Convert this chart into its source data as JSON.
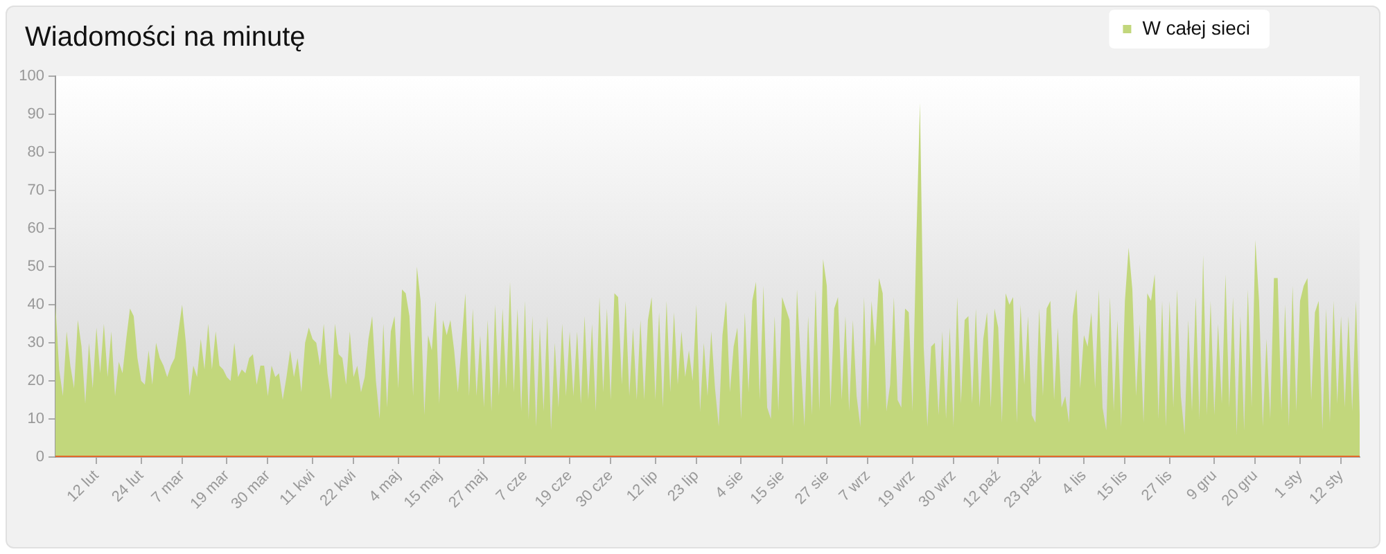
{
  "chart_data": {
    "type": "area",
    "title": "Wiadomości na minutę",
    "legend": "top right",
    "categories": [
      null,
      null,
      null,
      null,
      null,
      null,
      null,
      null,
      null,
      null,
      null,
      "12 lut",
      null,
      null,
      null,
      null,
      null,
      null,
      null,
      null,
      null,
      null,
      null,
      "24 lut",
      null,
      null,
      null,
      null,
      null,
      null,
      null,
      null,
      null,
      null,
      "7 mar",
      null,
      null,
      null,
      null,
      null,
      null,
      null,
      null,
      null,
      null,
      null,
      "19 mar",
      null,
      null,
      null,
      null,
      null,
      null,
      null,
      null,
      null,
      null,
      "30 mar",
      null,
      null,
      null,
      null,
      null,
      null,
      null,
      null,
      null,
      null,
      null,
      "11 kwi",
      null,
      null,
      null,
      null,
      null,
      null,
      null,
      null,
      null,
      null,
      "22 kwi",
      null,
      null,
      null,
      null,
      null,
      null,
      null,
      null,
      null,
      null,
      null,
      "4 maj",
      null,
      null,
      null,
      null,
      null,
      null,
      null,
      null,
      null,
      null,
      "15 maj",
      null,
      null,
      null,
      null,
      null,
      null,
      null,
      null,
      null,
      null,
      null,
      "27 maj",
      null,
      null,
      null,
      null,
      null,
      null,
      null,
      null,
      null,
      null,
      "7 cze",
      null,
      null,
      null,
      null,
      null,
      null,
      null,
      null,
      null,
      null,
      null,
      "19 cze",
      null,
      null,
      null,
      null,
      null,
      null,
      null,
      null,
      null,
      null,
      "30 cze",
      null,
      null,
      null,
      null,
      null,
      null,
      null,
      null,
      null,
      null,
      null,
      "12 lip",
      null,
      null,
      null,
      null,
      null,
      null,
      null,
      null,
      null,
      null,
      "23 lip",
      null,
      null,
      null,
      null,
      null,
      null,
      null,
      null,
      null,
      null,
      null,
      "4 sie",
      null,
      null,
      null,
      null,
      null,
      null,
      null,
      null,
      null,
      null,
      "15 sie",
      null,
      null,
      null,
      null,
      null,
      null,
      null,
      null,
      null,
      null,
      null,
      "27 sie",
      null,
      null,
      null,
      null,
      null,
      null,
      null,
      null,
      null,
      null,
      "7 wrz",
      null,
      null,
      null,
      null,
      null,
      null,
      null,
      null,
      null,
      null,
      null,
      "19 wrz",
      null,
      null,
      null,
      null,
      null,
      null,
      null,
      null,
      null,
      null,
      "30 wrz",
      null,
      null,
      null,
      null,
      null,
      null,
      null,
      null,
      null,
      null,
      null,
      "12 paź",
      null,
      null,
      null,
      null,
      null,
      null,
      null,
      null,
      null,
      null,
      "23 paź",
      null,
      null,
      null,
      null,
      null,
      null,
      null,
      null,
      null,
      null,
      null,
      "4 lis",
      null,
      null,
      null,
      null,
      null,
      null,
      null,
      null,
      null,
      null,
      "15 lis",
      null,
      null,
      null,
      null,
      null,
      null,
      null,
      null,
      null,
      null,
      null,
      "27 lis",
      null,
      null,
      null,
      null,
      null,
      null,
      null,
      null,
      null,
      null,
      null,
      "9 gru",
      null,
      null,
      null,
      null,
      null,
      null,
      null,
      null,
      null,
      null,
      "20 gru",
      null,
      null,
      null,
      null,
      null,
      null,
      null,
      null,
      null,
      null,
      null,
      "1 sty",
      null,
      null,
      null,
      null,
      null,
      null,
      null,
      null,
      null,
      null,
      "12 sty",
      null,
      null,
      null,
      null,
      null
    ],
    "ylim": [
      0,
      100
    ],
    "yticks": [
      0,
      10,
      20,
      30,
      40,
      50,
      60,
      70,
      80,
      90,
      100
    ],
    "series": [
      {
        "name": "W całej sieci",
        "color": "#c2d77c",
        "values": [
          40,
          23,
          16,
          33,
          24,
          18,
          36,
          29,
          14,
          30,
          18,
          34,
          22,
          35,
          21,
          33,
          16,
          25,
          22,
          31,
          39,
          37,
          26,
          20,
          19,
          28,
          19,
          30,
          26,
          24,
          21,
          24,
          26,
          33,
          40,
          30,
          16,
          24,
          21,
          31,
          23,
          35,
          23,
          33,
          24,
          23,
          21,
          20,
          30,
          21,
          23,
          22,
          26,
          27,
          19,
          24,
          24,
          16,
          24,
          21,
          22,
          15,
          21,
          28,
          21,
          26,
          17,
          30,
          34,
          31,
          30,
          24,
          35,
          22,
          15,
          35,
          27,
          26,
          19,
          33,
          21,
          24,
          17,
          21,
          31,
          37,
          20,
          10,
          35,
          13,
          33,
          37,
          18,
          44,
          43,
          37,
          16,
          50,
          41,
          11,
          32,
          28,
          41,
          14,
          36,
          32,
          36,
          28,
          17,
          30,
          43,
          16,
          39,
          16,
          32,
          13,
          36,
          12,
          40,
          16,
          39,
          18,
          46,
          17,
          39,
          12,
          41,
          10,
          37,
          8,
          34,
          12,
          37,
          7,
          30,
          13,
          35,
          16,
          33,
          16,
          33,
          14,
          37,
          15,
          35,
          12,
          42,
          17,
          39,
          15,
          43,
          42,
          19,
          41,
          16,
          34,
          15,
          36,
          15,
          36,
          42,
          15,
          38,
          13,
          41,
          17,
          38,
          19,
          33,
          21,
          28,
          20,
          40,
          12,
          30,
          16,
          33,
          18,
          8,
          32,
          41,
          17,
          29,
          34,
          10,
          38,
          17,
          41,
          46,
          15,
          45,
          13,
          10,
          37,
          12,
          42,
          39,
          36,
          8,
          44,
          25,
          8,
          37,
          11,
          44,
          12,
          52,
          45,
          13,
          39,
          42,
          15,
          37,
          12,
          36,
          16,
          8,
          42,
          12,
          41,
          29,
          47,
          43,
          12,
          19,
          42,
          15,
          13,
          39,
          38,
          12,
          56,
          93,
          29,
          8,
          29,
          30,
          11,
          33,
          10,
          34,
          8,
          42,
          14,
          36,
          37,
          14,
          39,
          13,
          31,
          38,
          13,
          39,
          34,
          9,
          43,
          40,
          42,
          9,
          40,
          19,
          37,
          11,
          9,
          39,
          16,
          39,
          41,
          15,
          34,
          13,
          16,
          9,
          37,
          44,
          18,
          32,
          29,
          38,
          18,
          44,
          13,
          7,
          42,
          12,
          36,
          8,
          41,
          55,
          44,
          16,
          35,
          9,
          43,
          41,
          48,
          10,
          41,
          8,
          41,
          13,
          44,
          16,
          6,
          36,
          12,
          42,
          10,
          53,
          11,
          41,
          11,
          35,
          14,
          48,
          13,
          42,
          6,
          37,
          7,
          44,
          13,
          57,
          41,
          8,
          31,
          10,
          47,
          47,
          12,
          40,
          8,
          45,
          12,
          41,
          45,
          47,
          15,
          38,
          41,
          7,
          39,
          9,
          41,
          14,
          37,
          13,
          37,
          12,
          41,
          11
        ]
      },
      {
        "type": "line",
        "color": "#e4692a",
        "values": [
          0,
          0,
          0,
          0,
          0,
          0,
          0,
          0,
          0,
          0,
          0,
          0,
          0,
          0,
          0,
          0,
          0,
          0,
          0,
          0,
          0,
          0,
          0,
          0,
          0,
          0,
          0,
          0,
          0,
          0,
          0,
          0,
          0,
          0,
          0,
          0,
          0,
          0,
          0,
          0,
          0,
          0,
          0,
          0,
          0,
          0,
          0,
          0,
          0,
          0,
          0,
          0,
          0,
          0,
          0,
          0,
          0,
          0,
          0,
          0,
          0,
          0,
          0,
          0,
          0,
          0,
          0,
          0,
          0,
          0,
          0,
          0,
          0,
          0,
          0,
          0,
          0,
          0,
          0,
          0,
          0,
          0,
          0,
          0,
          0,
          0,
          0,
          0,
          0,
          0,
          0,
          0,
          0,
          0,
          0,
          0,
          0,
          0,
          0,
          0,
          0,
          0,
          0,
          0,
          0,
          0,
          0,
          0,
          0,
          0,
          0,
          0,
          0,
          0,
          0,
          0,
          0,
          0,
          0,
          0,
          0,
          0,
          0,
          0,
          0,
          0,
          0,
          0,
          0,
          0,
          0,
          0,
          0,
          0,
          0,
          0,
          0,
          0,
          0,
          0,
          0,
          0,
          0,
          0,
          0,
          0,
          0,
          0,
          0,
          0,
          0,
          0,
          0,
          0,
          0,
          0,
          0,
          0,
          0,
          0,
          0,
          0,
          0,
          0,
          0,
          0,
          0,
          0,
          0,
          0,
          0,
          0,
          0,
          0,
          0,
          0,
          0,
          0,
          0,
          0,
          0,
          0,
          0,
          0,
          0,
          0,
          0,
          0,
          0,
          0,
          0,
          0,
          0,
          0,
          0,
          0,
          0,
          0,
          0,
          0,
          0,
          0,
          0,
          0,
          0,
          0,
          0,
          0,
          0,
          0,
          0,
          0,
          0,
          0,
          0,
          0,
          0,
          0,
          0,
          0,
          0,
          0,
          0,
          0,
          0,
          0,
          0,
          0,
          0,
          0,
          0,
          0,
          0,
          0,
          0,
          0,
          0,
          0,
          0,
          0,
          0,
          0,
          0,
          0,
          0,
          0,
          0,
          0,
          0,
          0,
          0,
          0,
          0,
          0,
          0,
          0,
          0,
          0,
          0,
          0,
          0,
          0,
          0,
          0,
          0,
          0,
          0,
          0,
          0,
          0,
          0,
          0,
          0,
          0,
          0,
          0,
          0,
          0,
          0,
          0,
          0,
          0,
          0,
          0,
          0,
          0,
          0,
          0,
          0,
          0,
          0,
          0,
          0,
          0,
          0,
          0,
          0,
          0,
          0,
          0,
          0,
          0,
          0,
          0,
          0,
          0,
          0,
          0,
          0,
          0,
          0,
          0,
          0,
          0,
          0,
          0,
          0,
          0,
          0,
          0,
          0,
          0,
          0,
          0,
          0,
          0,
          0,
          0,
          0,
          0,
          0,
          0,
          0,
          0,
          0,
          0,
          0,
          0,
          0,
          0,
          0,
          0,
          0,
          0,
          0,
          0,
          0,
          0,
          0,
          0,
          0
        ]
      }
    ]
  }
}
